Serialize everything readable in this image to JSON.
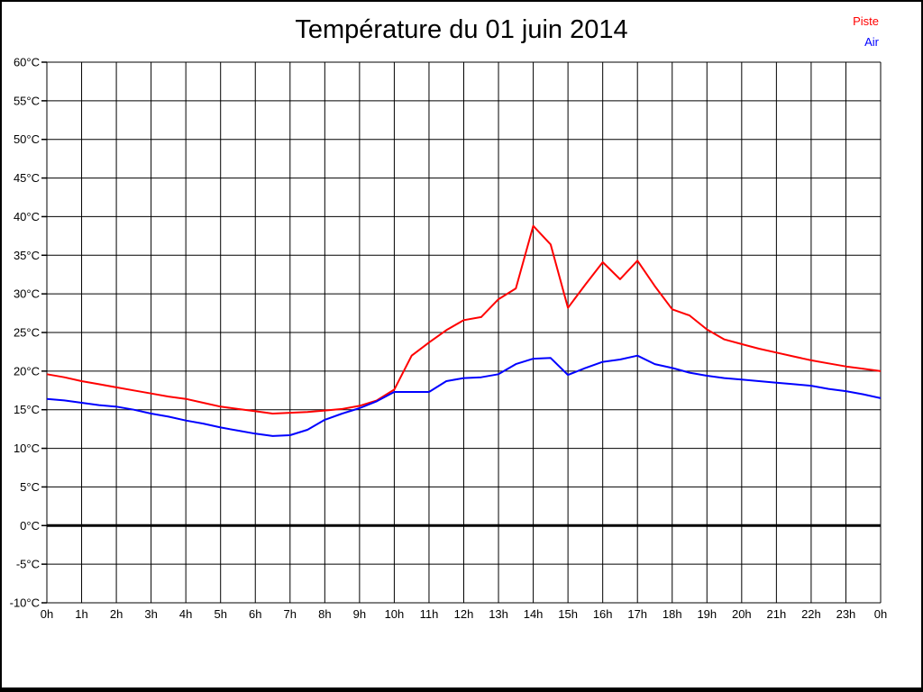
{
  "window": {
    "background_color": "#ffffff",
    "border_color": "#000000"
  },
  "chart_data": {
    "type": "line",
    "title": "Température du 01 juin 2014",
    "xlabel": "",
    "ylabel": "",
    "ylim": [
      -10,
      60
    ],
    "x_hours_max": 24,
    "dt_hours": 0.5,
    "grid": "full black grid, 1h x 5C cells",
    "zero_line": "0°C horizontal line drawn bold",
    "legend_position": "top-right",
    "x_tick_labels": [
      "0h",
      "1h",
      "2h",
      "3h",
      "4h",
      "5h",
      "6h",
      "7h",
      "8h",
      "9h",
      "10h",
      "11h",
      "12h",
      "13h",
      "14h",
      "15h",
      "16h",
      "17h",
      "18h",
      "19h",
      "20h",
      "21h",
      "22h",
      "23h",
      "0h"
    ],
    "y_tick_labels": [
      "60°C",
      "55°C",
      "50°C",
      "45°C",
      "40°C",
      "35°C",
      "30°C",
      "25°C",
      "20°C",
      "15°C",
      "10°C",
      "5°C",
      "0°C",
      "-5°C",
      "-10°C"
    ],
    "series": [
      {
        "name": "Piste",
        "color": "#ff0000",
        "values": [
          19.6,
          19.2,
          18.7,
          18.3,
          17.9,
          17.5,
          17.1,
          16.7,
          16.4,
          15.9,
          15.4,
          15.1,
          14.8,
          14.5,
          14.6,
          14.7,
          14.9,
          15.1,
          15.5,
          16.2,
          17.6,
          22.0,
          23.7,
          25.3,
          26.6,
          27.0,
          29.3,
          30.7,
          38.8,
          36.4,
          28.2,
          31.2,
          34.1,
          31.9,
          34.3,
          31.0,
          28.0,
          27.2,
          25.4,
          24.1,
          23.5,
          22.9,
          22.4,
          21.9,
          21.4,
          21.0,
          20.6,
          20.3,
          20.0
        ]
      },
      {
        "name": "Air",
        "color": "#0000ff",
        "values": [
          16.4,
          16.2,
          15.9,
          15.6,
          15.4,
          15.0,
          14.5,
          14.1,
          13.6,
          13.2,
          12.7,
          12.3,
          11.9,
          11.6,
          11.7,
          12.4,
          13.7,
          14.5,
          15.2,
          16.1,
          17.3,
          17.3,
          17.3,
          18.7,
          19.1,
          19.2,
          19.6,
          20.9,
          21.6,
          21.7,
          19.5,
          20.4,
          21.2,
          21.5,
          22.0,
          20.9,
          20.4,
          19.8,
          19.4,
          19.1,
          18.9,
          18.7,
          18.5,
          18.3,
          18.1,
          17.7,
          17.4,
          17.0,
          16.5
        ]
      }
    ]
  }
}
